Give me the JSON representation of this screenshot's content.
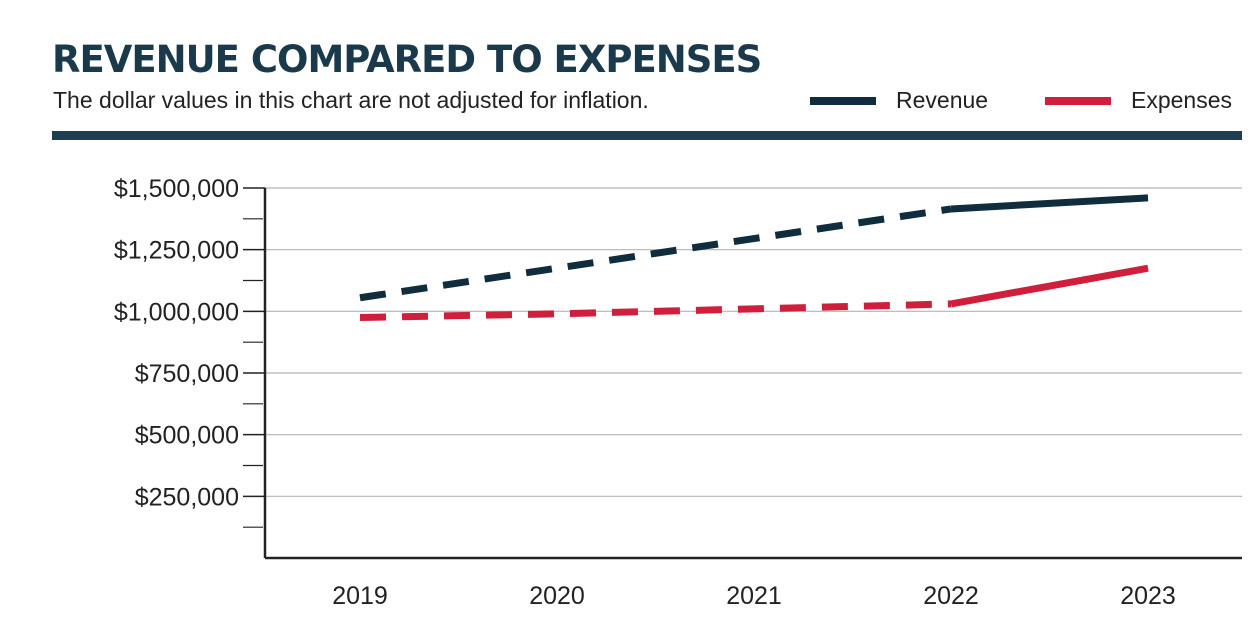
{
  "header": {
    "title": "REVENUE COMPARED TO EXPENSES",
    "subtitle": "The dollar values in this chart are not adjusted for inflation."
  },
  "legend": [
    {
      "label": "Revenue",
      "color": "#0f2d3c"
    },
    {
      "label": "Expenses",
      "color": "#d01f3c"
    }
  ],
  "colors": {
    "title": "#1a3a4c",
    "rule": "#1d3f52",
    "grid": "#b5b5b5",
    "axis": "#222222"
  },
  "chart_data": {
    "type": "line",
    "title": "REVENUE COMPARED TO EXPENSES",
    "subtitle": "The dollar values in this chart are not adjusted for inflation.",
    "x": [
      "2019",
      "2020",
      "2021",
      "2022",
      "2023"
    ],
    "ylim": [
      0,
      1500000
    ],
    "yticks": [
      250000,
      500000,
      750000,
      1000000,
      1250000,
      1500000
    ],
    "ytick_labels": [
      "$250,000",
      "$500,000",
      "$750,000",
      "$1,000,000",
      "$1,250,000",
      "$1,500,000"
    ],
    "grid": true,
    "legend_position": "top-right",
    "series": [
      {
        "name": "Revenue",
        "color": "#0f2d3c",
        "values": [
          1055000,
          1175000,
          1295000,
          1415000,
          1460000
        ],
        "dashed_until_index": 3
      },
      {
        "name": "Expenses",
        "color": "#d01f3c",
        "values": [
          975000,
          990000,
          1010000,
          1030000,
          1175000
        ],
        "dashed_until_index": 3
      }
    ]
  }
}
